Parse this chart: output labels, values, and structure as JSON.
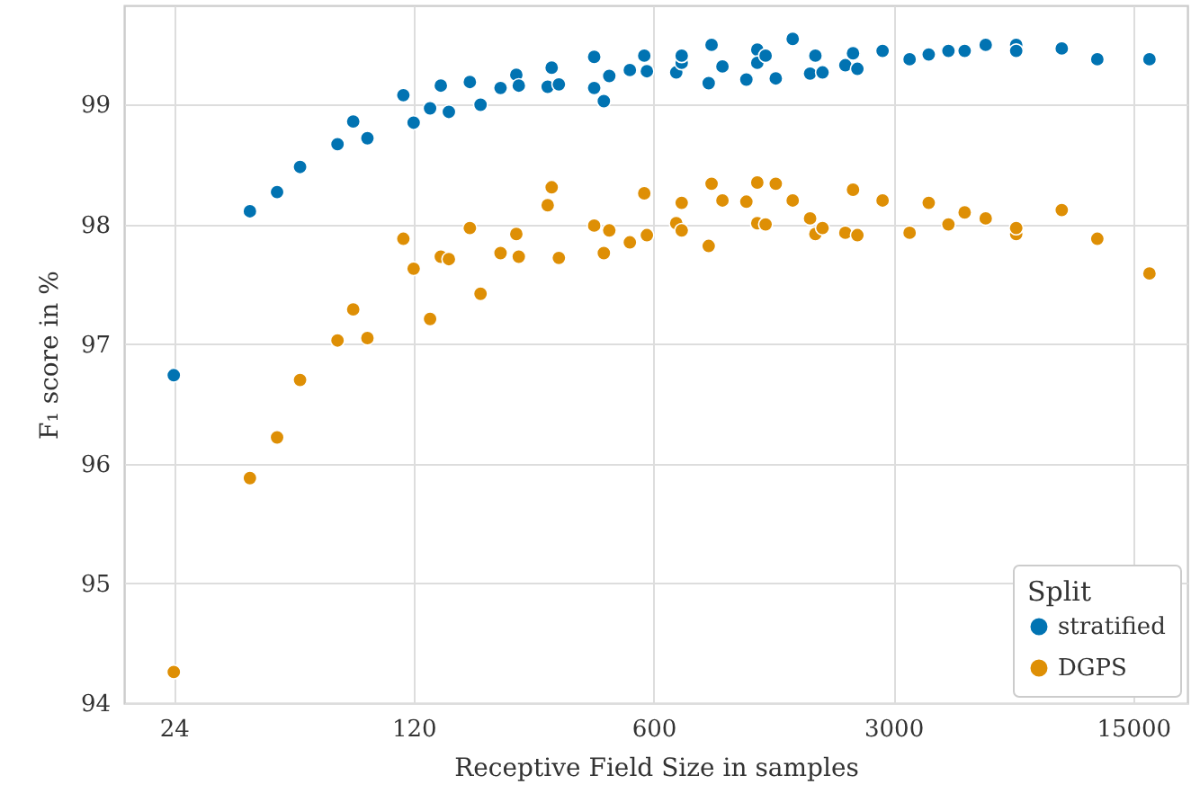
{
  "chart_data": {
    "type": "scatter",
    "xlabel": "Receptive Field Size in samples",
    "ylabel": "F₁ score in %",
    "legend_title": "Split",
    "legend": "bottom right",
    "grid": true,
    "log": "x",
    "marker": "circle",
    "xlim": [
      17.2,
      21580
    ],
    "xticks": [
      24,
      120,
      600,
      3000,
      15000
    ],
    "ylim": [
      94,
      99.83
    ],
    "yticks": [
      94,
      95,
      96,
      97,
      98,
      99
    ],
    "series": [
      {
        "name": "stratified",
        "color": "#0173b2",
        "x": [
          24,
          40,
          48,
          56,
          72,
          80,
          88,
          112,
          120,
          134,
          144,
          152,
          175,
          188,
          215,
          239,
          243,
          295,
          303,
          318,
          403,
          403,
          430,
          446,
          512,
          564,
          574,
          699,
          725,
          725,
          869,
          886,
          953,
          1119,
          1204,
          1204,
          1273,
          1363,
          1527,
          1716,
          1778,
          1865,
          2174,
          2289,
          2357,
          2791,
          3346,
          3804,
          4342,
          4841,
          5575,
          6841,
          6841,
          9288,
          11790,
          16730
        ],
        "values": [
          96.74,
          98.11,
          98.27,
          98.48,
          98.67,
          98.86,
          98.72,
          99.08,
          98.85,
          98.97,
          99.16,
          98.94,
          99.19,
          99.0,
          99.14,
          99.25,
          99.16,
          99.15,
          99.31,
          99.17,
          99.14,
          99.4,
          99.03,
          99.24,
          99.29,
          99.41,
          99.28,
          99.27,
          99.35,
          99.41,
          99.18,
          99.5,
          99.32,
          99.21,
          99.46,
          99.35,
          99.41,
          99.22,
          99.55,
          99.26,
          99.41,
          99.27,
          99.33,
          99.43,
          99.3,
          99.45,
          99.38,
          99.42,
          99.45,
          99.45,
          99.5,
          99.5,
          99.45,
          99.47,
          99.38,
          99.38
        ]
      },
      {
        "name": "DGPS",
        "color": "#de8f05",
        "x": [
          24,
          40,
          48,
          56,
          72,
          80,
          88,
          112,
          120,
          134,
          144,
          152,
          175,
          188,
          215,
          239,
          243,
          295,
          303,
          318,
          403,
          430,
          446,
          512,
          564,
          574,
          699,
          725,
          725,
          869,
          886,
          953,
          1119,
          1204,
          1204,
          1273,
          1363,
          1527,
          1716,
          1778,
          1865,
          2174,
          2289,
          2357,
          2791,
          3346,
          3804,
          4342,
          4841,
          5575,
          6841,
          6841,
          9288,
          11790,
          16730
        ],
        "values": [
          94.26,
          95.88,
          96.22,
          96.7,
          97.03,
          97.29,
          97.05,
          97.88,
          97.63,
          97.21,
          97.73,
          97.71,
          97.97,
          97.42,
          97.76,
          97.92,
          97.73,
          98.16,
          98.31,
          97.72,
          97.99,
          97.76,
          97.95,
          97.85,
          98.26,
          97.91,
          98.01,
          98.18,
          97.95,
          97.82,
          98.34,
          98.2,
          98.19,
          98.01,
          98.35,
          98.0,
          98.34,
          98.2,
          98.05,
          97.92,
          97.97,
          97.93,
          98.29,
          97.91,
          98.2,
          97.93,
          98.18,
          98.0,
          98.1,
          98.05,
          97.92,
          97.97,
          98.12,
          97.88,
          97.59
        ]
      }
    ]
  }
}
